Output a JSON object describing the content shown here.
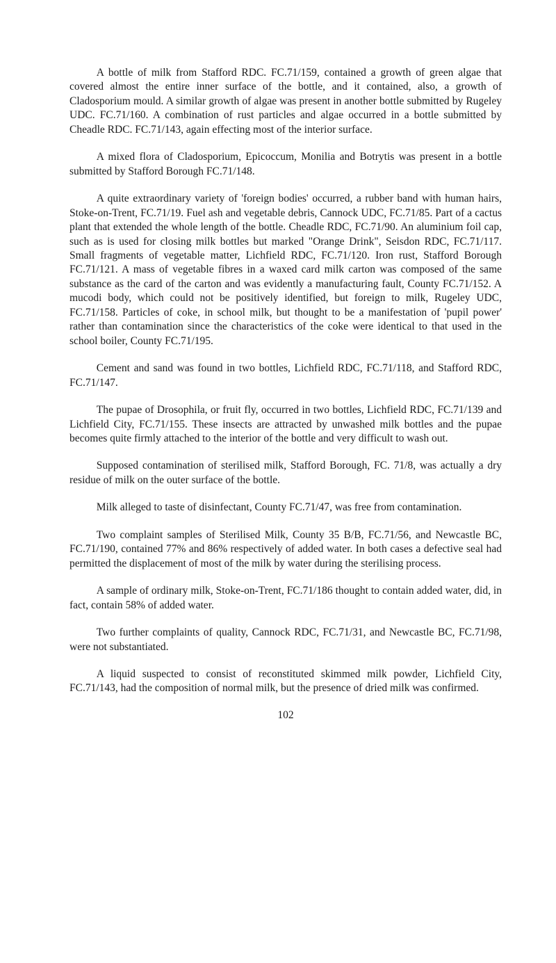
{
  "paragraphs": [
    "A bottle of milk from Stafford RDC. FC.71/159, contained a growth of green algae that covered almost the entire inner surface of the bottle, and it contained, also, a growth of Cladosporium mould. A similar growth of algae was present in another bottle submitted by Rugeley UDC. FC.71/160. A combination of rust particles and algae occurred in a bottle submitted by Cheadle RDC. FC.71/143, again effecting most of the interior surface.",
    "A mixed flora of Cladosporium, Epicoccum, Monilia and Botrytis was present in a bottle submitted by Stafford Borough FC.71/148.",
    "A quite extraordinary variety of 'foreign bodies' occurred, a rubber band with human hairs, Stoke-on-Trent, FC.71/19. Fuel ash and vegetable debris, Cannock UDC, FC.71/85. Part of a cactus plant that extended the whole length of the bottle. Cheadle RDC, FC.71/90. An aluminium foil cap, such as is used for closing milk bottles but marked \"Orange Drink\", Seisdon RDC, FC.71/117. Small fragments of vegetable matter, Lichfield RDC, FC.71/120. Iron rust, Stafford Borough FC.71/121. A mass of vegetable fibres in a waxed card milk carton was composed of the same substance as the card of the carton and was evidently a manufacturing fault, County FC.71/152. A mucodi body, which could not be positively identified, but foreign to milk, Rugeley UDC, FC.71/158. Particles of coke, in school milk, but thought to be a manifestation of 'pupil power' rather than contamination since the characteristics of the coke were identical to that used in the school boiler, County FC.71/195.",
    "Cement and sand was found in two bottles, Lichfield RDC, FC.71/118, and Stafford RDC, FC.71/147.",
    "The pupae of Drosophila, or fruit fly, occurred in two bottles, Lichfield RDC, FC.71/139 and Lichfield City, FC.71/155. These insects are attracted by unwashed milk bottles and the pupae becomes quite firmly attached to the interior of the bottle and very difficult to wash out.",
    "Supposed contamination of sterilised milk, Stafford Borough, FC. 71/8, was actually a dry residue of milk on the outer surface of the bottle.",
    "Milk alleged to taste of disinfectant, County FC.71/47, was free from contamination.",
    "Two complaint samples of Sterilised Milk, County 35 B/B, FC.71/56, and Newcastle BC, FC.71/190, contained 77% and 86% respectively of added water. In both cases a defective seal had permitted the displacement of most of the milk by water during the sterilising process.",
    "A sample of ordinary milk, Stoke-on-Trent, FC.71/186 thought to contain added water, did, in fact, contain 58% of added water.",
    "Two further complaints of quality, Cannock RDC, FC.71/31, and Newcastle BC, FC.71/98, were not substantiated.",
    "A liquid suspected to consist of reconstituted skimmed milk powder, Lichfield City, FC.71/143, had the composition of normal milk, but the presence of dried milk was confirmed."
  ],
  "page_number": "102"
}
